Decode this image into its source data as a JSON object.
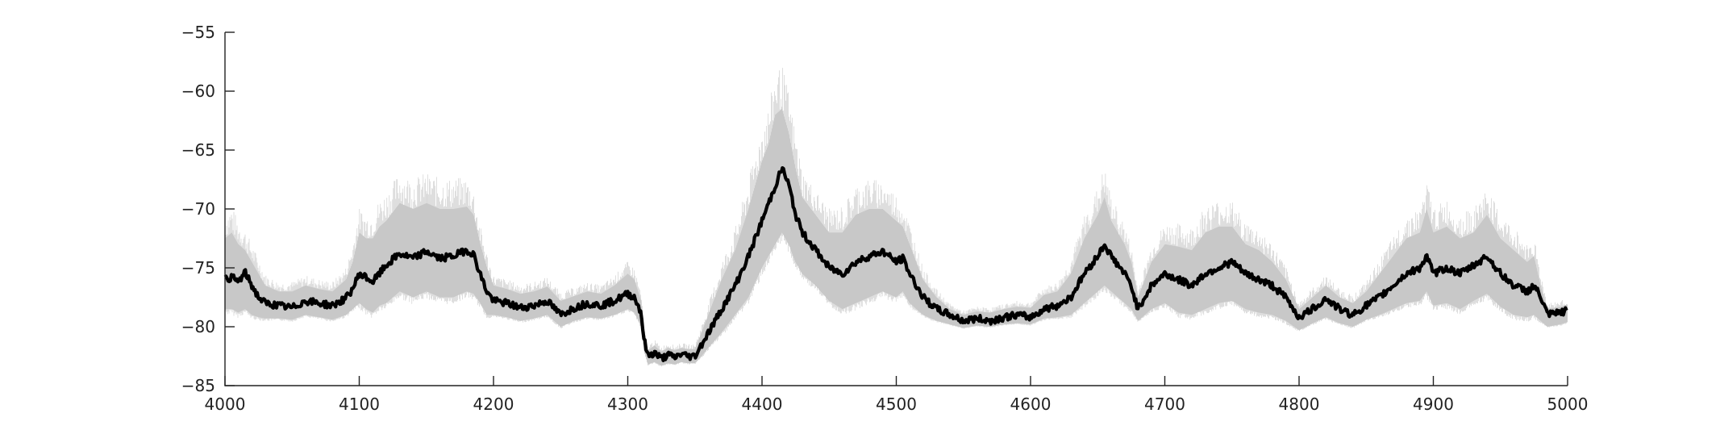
{
  "chart_data": {
    "type": "line",
    "title": "",
    "xlabel": "",
    "ylabel": "",
    "xlim": [
      4000,
      5000
    ],
    "ylim": [
      -85,
      -55
    ],
    "x_ticks": [
      4000,
      4100,
      4200,
      4300,
      4400,
      4500,
      4600,
      4700,
      4800,
      4900,
      5000
    ],
    "y_ticks": [
      -85,
      -80,
      -75,
      -70,
      -65,
      -60,
      -55
    ],
    "x_tick_labels": [
      "4000",
      "4100",
      "4200",
      "4300",
      "4400",
      "4500",
      "4600",
      "4700",
      "4800",
      "4900",
      "5000"
    ],
    "y_tick_labels": [
      "−85",
      "−80",
      "−75",
      "−70",
      "−65",
      "−60",
      "−55"
    ],
    "grid": false,
    "legend": "none",
    "colors": {
      "band": "#c8c8c8",
      "line": "#000000",
      "axis": "#222222"
    },
    "series": [
      {
        "role": "mean",
        "x": [
          4000,
          4005,
          4010,
          4015,
          4020,
          4025,
          4030,
          4040,
          4050,
          4060,
          4070,
          4080,
          4090,
          4095,
          4100,
          4105,
          4110,
          4115,
          4120,
          4130,
          4140,
          4150,
          4160,
          4170,
          4180,
          4185,
          4190,
          4195,
          4200,
          4210,
          4220,
          4230,
          4240,
          4250,
          4260,
          4270,
          4280,
          4290,
          4300,
          4305,
          4310,
          4312,
          4315,
          4320,
          4325,
          4330,
          4335,
          4340,
          4345,
          4350,
          4355,
          4360,
          4370,
          4380,
          4390,
          4400,
          4405,
          4410,
          4415,
          4420,
          4425,
          4430,
          4440,
          4450,
          4460,
          4470,
          4480,
          4490,
          4500,
          4505,
          4510,
          4515,
          4520,
          4530,
          4540,
          4550,
          4560,
          4570,
          4580,
          4590,
          4600,
          4610,
          4620,
          4630,
          4640,
          4650,
          4655,
          4660,
          4670,
          4675,
          4680,
          4690,
          4700,
          4710,
          4720,
          4730,
          4740,
          4750,
          4760,
          4770,
          4780,
          4790,
          4800,
          4810,
          4820,
          4830,
          4840,
          4850,
          4860,
          4870,
          4880,
          4890,
          4895,
          4900,
          4910,
          4920,
          4930,
          4940,
          4950,
          4960,
          4970,
          4975,
          4980,
          4985,
          4990,
          4995,
          5000
        ],
        "y": [
          -76,
          -75.8,
          -76.2,
          -75.4,
          -76.5,
          -77.5,
          -78,
          -78.2,
          -78.4,
          -77.8,
          -78,
          -78.2,
          -77.6,
          -76.8,
          -75.5,
          -75.8,
          -76.2,
          -75.5,
          -74.8,
          -73.8,
          -74.2,
          -73.6,
          -74.2,
          -74,
          -73.5,
          -73.8,
          -75.5,
          -77,
          -77.8,
          -78,
          -78.4,
          -78.2,
          -77.8,
          -79,
          -78.4,
          -78,
          -78.2,
          -77.8,
          -77.2,
          -77.5,
          -78.8,
          -81,
          -82.5,
          -82.2,
          -82.7,
          -82.4,
          -82.6,
          -82.3,
          -82.5,
          -82.5,
          -81.5,
          -80.5,
          -78.5,
          -76.5,
          -74,
          -71,
          -69.5,
          -68,
          -66.5,
          -68,
          -70.5,
          -72,
          -73.5,
          -75,
          -75.5,
          -74.5,
          -74,
          -73.6,
          -74.5,
          -74.2,
          -75.5,
          -76.5,
          -77.5,
          -78.5,
          -79,
          -79.5,
          -79.3,
          -79.5,
          -79.2,
          -79,
          -79.2,
          -78.5,
          -78.2,
          -77.5,
          -75.5,
          -74,
          -73,
          -74,
          -75.5,
          -76.5,
          -78.5,
          -76.5,
          -75.5,
          -76,
          -76.5,
          -75.5,
          -75,
          -74.5,
          -75.5,
          -76,
          -76.5,
          -77.5,
          -79.2,
          -78.5,
          -77.6,
          -78.5,
          -79,
          -78.2,
          -77.5,
          -76.5,
          -75.5,
          -75,
          -74,
          -75.5,
          -75,
          -75.5,
          -74.8,
          -74,
          -75.5,
          -76.5,
          -77,
          -76.5,
          -77.5,
          -79,
          -78.9,
          -78.8,
          -78.6
        ]
      },
      {
        "role": "band-upper",
        "x": [
          4000,
          4005,
          4010,
          4015,
          4020,
          4025,
          4030,
          4040,
          4050,
          4060,
          4070,
          4080,
          4090,
          4095,
          4100,
          4105,
          4110,
          4115,
          4120,
          4130,
          4140,
          4150,
          4160,
          4170,
          4180,
          4185,
          4190,
          4195,
          4200,
          4210,
          4220,
          4230,
          4240,
          4250,
          4260,
          4270,
          4280,
          4290,
          4300,
          4305,
          4310,
          4312,
          4315,
          4320,
          4325,
          4330,
          4335,
          4340,
          4345,
          4350,
          4355,
          4360,
          4370,
          4380,
          4390,
          4400,
          4405,
          4410,
          4415,
          4420,
          4425,
          4430,
          4440,
          4450,
          4460,
          4470,
          4480,
          4490,
          4500,
          4505,
          4510,
          4515,
          4520,
          4530,
          4540,
          4550,
          4560,
          4570,
          4580,
          4590,
          4600,
          4610,
          4620,
          4630,
          4640,
          4650,
          4655,
          4660,
          4670,
          4675,
          4680,
          4690,
          4700,
          4710,
          4720,
          4730,
          4740,
          4750,
          4760,
          4770,
          4780,
          4790,
          4800,
          4810,
          4820,
          4830,
          4840,
          4850,
          4860,
          4870,
          4880,
          4890,
          4895,
          4900,
          4910,
          4920,
          4930,
          4940,
          4950,
          4960,
          4970,
          4975,
          4980,
          4985,
          4990,
          4995,
          5000
        ],
        "y": [
          -72.5,
          -72,
          -73,
          -73.5,
          -74.5,
          -75.5,
          -76.5,
          -77,
          -77,
          -76.5,
          -76.8,
          -77,
          -76,
          -74.5,
          -72,
          -72.5,
          -72.5,
          -71.5,
          -71,
          -69.5,
          -70,
          -69.5,
          -70,
          -70,
          -69.8,
          -70.5,
          -73,
          -75,
          -76.5,
          -76.8,
          -77.2,
          -77,
          -76.6,
          -77.8,
          -77.4,
          -77,
          -77.2,
          -76.5,
          -75.5,
          -76,
          -77.8,
          -80.5,
          -82,
          -81.6,
          -82.1,
          -81.8,
          -82,
          -81.8,
          -81.9,
          -81.9,
          -80.5,
          -79,
          -76,
          -73.5,
          -70,
          -66,
          -64.5,
          -62,
          -61.5,
          -63.5,
          -66.5,
          -69,
          -70.5,
          -72,
          -72,
          -70.5,
          -70,
          -70,
          -71,
          -71.5,
          -73,
          -74.5,
          -76,
          -77.5,
          -78.5,
          -79,
          -78.7,
          -78.8,
          -78.5,
          -78.3,
          -78.4,
          -77.3,
          -77,
          -75.5,
          -72.5,
          -70.5,
          -69,
          -71,
          -73,
          -74.5,
          -77.5,
          -74.5,
          -73,
          -73.2,
          -73.5,
          -72,
          -71.5,
          -71.5,
          -73,
          -73.5,
          -74.5,
          -76,
          -78.5,
          -77.5,
          -76.5,
          -77.5,
          -78,
          -77,
          -75.5,
          -74,
          -72.5,
          -72,
          -70,
          -72,
          -71.5,
          -72.5,
          -72,
          -70.5,
          -72.5,
          -73.5,
          -74.5,
          -74,
          -76.5,
          -78.5,
          -78.4,
          -78.3,
          -78.1
        ]
      },
      {
        "role": "band-lower",
        "x": [
          4000,
          4005,
          4010,
          4015,
          4020,
          4025,
          4030,
          4040,
          4050,
          4060,
          4070,
          4080,
          4090,
          4095,
          4100,
          4105,
          4110,
          4115,
          4120,
          4130,
          4140,
          4150,
          4160,
          4170,
          4180,
          4185,
          4190,
          4195,
          4200,
          4210,
          4220,
          4230,
          4240,
          4250,
          4260,
          4270,
          4280,
          4290,
          4300,
          4305,
          4310,
          4312,
          4315,
          4320,
          4325,
          4330,
          4335,
          4340,
          4345,
          4350,
          4355,
          4360,
          4370,
          4380,
          4390,
          4400,
          4405,
          4410,
          4415,
          4420,
          4425,
          4430,
          4440,
          4450,
          4460,
          4470,
          4480,
          4490,
          4500,
          4505,
          4510,
          4515,
          4520,
          4530,
          4540,
          4550,
          4560,
          4570,
          4580,
          4590,
          4600,
          4610,
          4620,
          4630,
          4640,
          4650,
          4655,
          4660,
          4670,
          4675,
          4680,
          4690,
          4700,
          4710,
          4720,
          4730,
          4740,
          4750,
          4760,
          4770,
          4780,
          4790,
          4800,
          4810,
          4820,
          4830,
          4840,
          4850,
          4860,
          4870,
          4880,
          4890,
          4895,
          4900,
          4910,
          4920,
          4930,
          4940,
          4950,
          4960,
          4970,
          4975,
          4980,
          4985,
          4990,
          4995,
          5000
        ],
        "y": [
          -78.5,
          -78.5,
          -78.8,
          -78.5,
          -79,
          -79.2,
          -79.3,
          -79.3,
          -79.4,
          -79,
          -79.2,
          -79.4,
          -79,
          -78.5,
          -78,
          -78.5,
          -78.8,
          -78.2,
          -78,
          -77,
          -77.5,
          -77,
          -77.5,
          -77.5,
          -77,
          -77.2,
          -78,
          -79,
          -79,
          -79.2,
          -79.5,
          -79.3,
          -79,
          -80,
          -79.5,
          -79.2,
          -79.3,
          -79,
          -78.5,
          -78.8,
          -80,
          -82,
          -83.2,
          -83,
          -83.3,
          -83.1,
          -83.2,
          -83,
          -83.1,
          -83.1,
          -82.5,
          -81.8,
          -80.5,
          -79,
          -77.5,
          -75,
          -74,
          -73,
          -72,
          -73,
          -74.5,
          -75.5,
          -76.5,
          -77.8,
          -78.5,
          -78,
          -77.5,
          -77,
          -77.5,
          -77,
          -78,
          -78.5,
          -79,
          -79.5,
          -79.8,
          -80.1,
          -79.9,
          -80,
          -79.8,
          -79.7,
          -79.8,
          -79.3,
          -79.2,
          -79,
          -78,
          -77,
          -76.5,
          -77,
          -78,
          -78.5,
          -79.5,
          -78.5,
          -78,
          -78.8,
          -79,
          -78.5,
          -78,
          -77.8,
          -78.5,
          -78.8,
          -79,
          -79.5,
          -80.3,
          -79.7,
          -79.2,
          -79.7,
          -80,
          -79.4,
          -79,
          -78.5,
          -78,
          -77.8,
          -77,
          -78.2,
          -78,
          -78.5,
          -77.8,
          -77.2,
          -78.3,
          -79,
          -79.2,
          -79,
          -79.5,
          -80,
          -79.9,
          -79.8,
          -79.6
        ]
      }
    ]
  }
}
